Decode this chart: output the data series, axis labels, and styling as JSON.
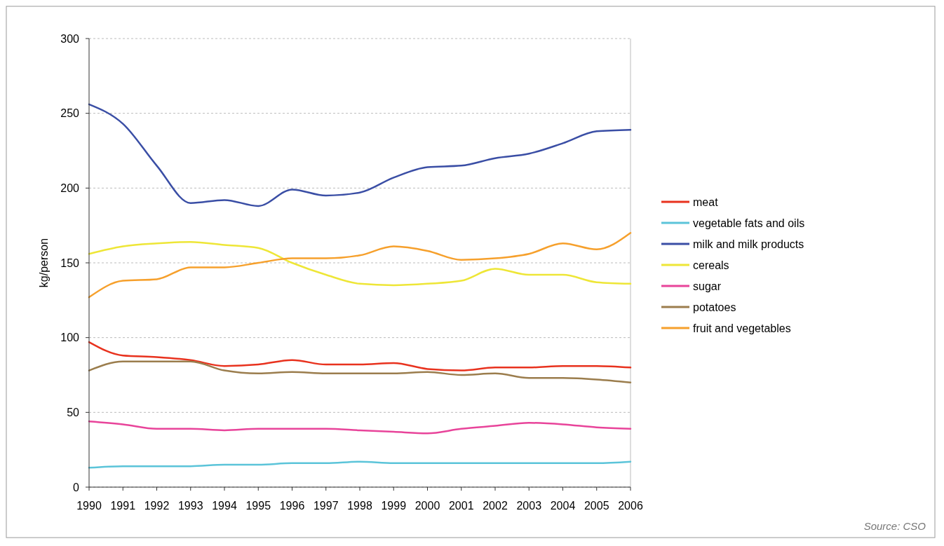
{
  "chart_data": {
    "type": "line",
    "ylabel": "kg/person",
    "x": [
      1990,
      1991,
      1992,
      1993,
      1994,
      1995,
      1996,
      1997,
      1998,
      1999,
      2000,
      2001,
      2002,
      2003,
      2004,
      2005,
      2006
    ],
    "xlim": [
      1990,
      2006
    ],
    "xticks": [
      1990,
      1991,
      1992,
      1993,
      1994,
      1995,
      1996,
      1997,
      1998,
      1999,
      2000,
      2001,
      2002,
      2003,
      2004,
      2005,
      2006
    ],
    "ylim": [
      0,
      300
    ],
    "yticks": [
      0,
      50,
      100,
      150,
      200,
      250,
      300
    ],
    "grid": "y",
    "legend": "right",
    "marker": "none",
    "line_style": "solid",
    "annotations": [
      "Source: CSO"
    ],
    "series": [
      {
        "name": "meat",
        "color": "#e8321e",
        "values": [
          97,
          88,
          87,
          85,
          81,
          82,
          85,
          82,
          82,
          83,
          79,
          78,
          80,
          80,
          81,
          81,
          80
        ]
      },
      {
        "name": "vegetable fats and oils",
        "color": "#5bc4d9",
        "values": [
          13,
          14,
          14,
          14,
          15,
          15,
          16,
          16,
          17,
          16,
          16,
          16,
          16,
          16,
          16,
          16,
          17
        ]
      },
      {
        "name": "milk and milk products",
        "color": "#3a4ea5",
        "values": [
          256,
          243,
          215,
          190,
          192,
          188,
          199,
          195,
          197,
          207,
          214,
          215,
          220,
          223,
          230,
          238,
          239
        ]
      },
      {
        "name": "cereals",
        "color": "#eee637",
        "values": [
          156,
          161,
          163,
          164,
          162,
          160,
          150,
          142,
          136,
          135,
          136,
          138,
          146,
          142,
          142,
          137,
          136
        ]
      },
      {
        "name": "sugar",
        "color": "#e8449a",
        "values": [
          44,
          42,
          39,
          39,
          38,
          39,
          39,
          39,
          38,
          37,
          36,
          39,
          41,
          43,
          42,
          40,
          39
        ]
      },
      {
        "name": "potatoes",
        "color": "#9b7d4d",
        "values": [
          78,
          84,
          84,
          84,
          78,
          76,
          77,
          76,
          76,
          76,
          77,
          75,
          76,
          73,
          73,
          72,
          70
        ]
      },
      {
        "name": "fruit and vegetables",
        "color": "#f6a02c",
        "values": [
          127,
          138,
          139,
          147,
          147,
          150,
          153,
          153,
          155,
          161,
          158,
          152,
          153,
          156,
          163,
          159,
          170
        ]
      }
    ]
  }
}
